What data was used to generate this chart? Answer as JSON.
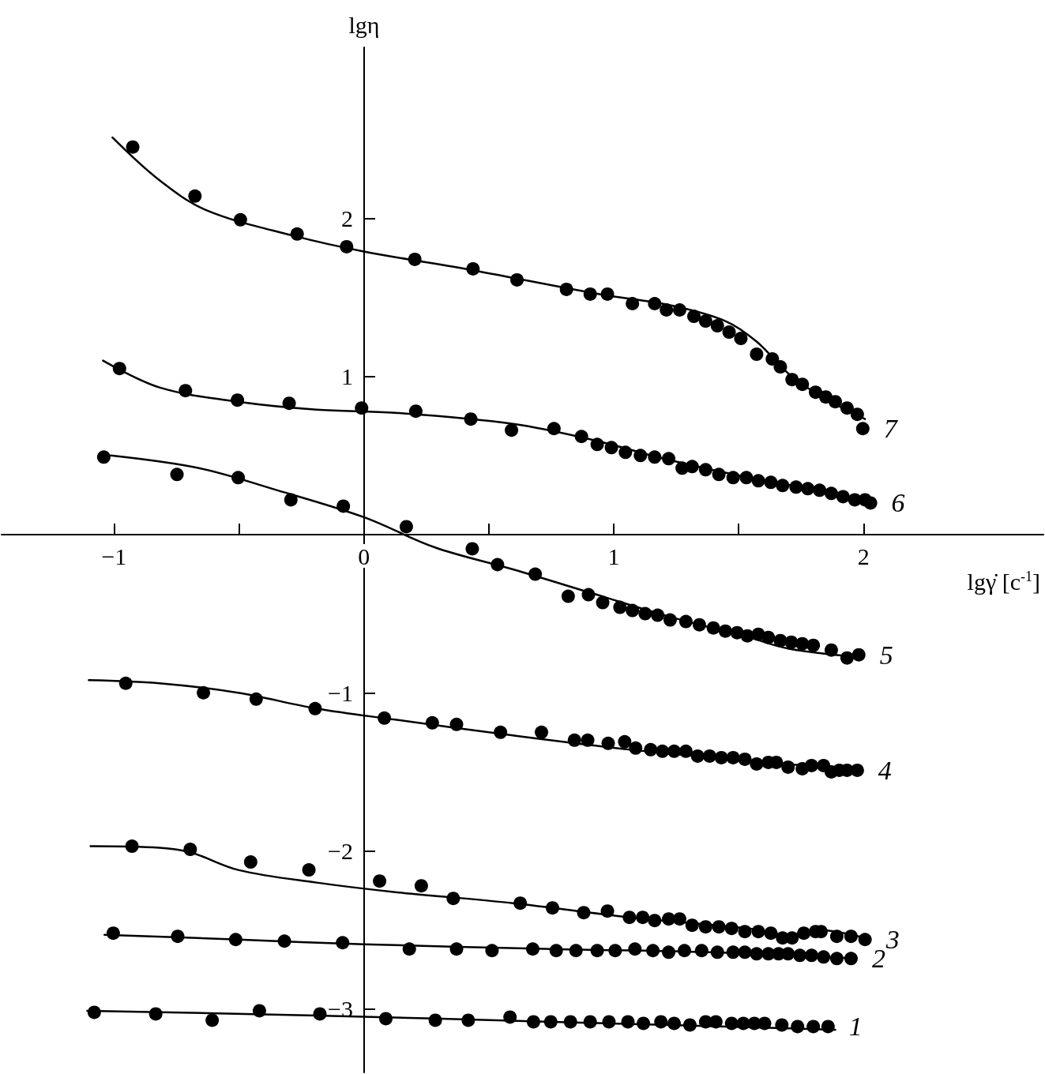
{
  "chart_data": {
    "type": "scatter",
    "xlabel": "lgγ̇ [c$^{-1}$]",
    "ylabel": "lgη",
    "xlim": [
      -1.45,
      2.72
    ],
    "ylim": [
      -3.4,
      3.08
    ],
    "xticks": [
      {
        "value": -1,
        "label": "−1"
      },
      {
        "value": -0.5,
        "label": null
      },
      0,
      {
        "value": 0.5,
        "label": null
      },
      1,
      {
        "value": 1.5,
        "label": null
      },
      2
    ],
    "yticks": [
      {
        "value": -3,
        "label": "−3"
      },
      {
        "value": -2,
        "label": "−2"
      },
      {
        "value": -1,
        "label": "−1"
      },
      1,
      2
    ],
    "grid": false,
    "legend": false,
    "marker": "circle",
    "series": [
      {
        "name": "7",
        "color": "#000000",
        "x": [
          -0.925,
          -0.676,
          -0.494,
          -0.267,
          -0.069,
          0.204,
          0.437,
          0.613,
          0.811,
          0.906,
          0.975,
          1.075,
          1.164,
          1.211,
          1.264,
          1.321,
          1.368,
          1.415,
          1.462,
          1.509,
          1.572,
          1.635,
          1.667,
          1.714,
          1.755,
          1.808,
          1.849,
          1.887,
          1.934,
          1.975,
          1.997
        ],
        "values": [
          2.45,
          2.14,
          1.99,
          1.9,
          1.82,
          1.74,
          1.68,
          1.61,
          1.55,
          1.52,
          1.52,
          1.46,
          1.46,
          1.42,
          1.42,
          1.38,
          1.35,
          1.32,
          1.28,
          1.24,
          1.14,
          1.11,
          1.06,
          0.98,
          0.95,
          0.9,
          0.87,
          0.84,
          0.8,
          0.76,
          0.67
        ]
      },
      {
        "type": "line",
        "marker": "none",
        "color": "#000000",
        "x": [
          -1.006,
          -0.818,
          -0.629,
          -0.283,
          0,
          0.44,
          0.943,
          1.226,
          1.447,
          1.572,
          1.698,
          1.824,
          2.006
        ],
        "values": [
          2.51,
          2.24,
          2.05,
          1.89,
          1.79,
          1.67,
          1.52,
          1.45,
          1.35,
          1.22,
          1.02,
          0.88,
          0.73
        ]
      },
      {
        "name": "6",
        "color": "#000000",
        "x": [
          -0.978,
          -0.714,
          -0.506,
          -0.299,
          -0.009,
          0.208,
          0.428,
          0.591,
          0.761,
          0.871,
          0.934,
          0.991,
          1.047,
          1.107,
          1.164,
          1.22,
          1.274,
          1.314,
          1.368,
          1.421,
          1.478,
          1.531,
          1.579,
          1.629,
          1.676,
          1.73,
          1.777,
          1.824,
          1.871,
          1.918,
          1.965,
          2.006,
          2.028
        ],
        "values": [
          1.05,
          0.91,
          0.85,
          0.83,
          0.8,
          0.78,
          0.73,
          0.66,
          0.67,
          0.62,
          0.57,
          0.55,
          0.52,
          0.5,
          0.49,
          0.48,
          0.42,
          0.43,
          0.41,
          0.38,
          0.36,
          0.36,
          0.34,
          0.33,
          0.31,
          0.3,
          0.29,
          0.28,
          0.26,
          0.24,
          0.22,
          0.22,
          0.2
        ]
      },
      {
        "type": "line",
        "marker": "none",
        "color": "#000000",
        "x": [
          -1.044,
          -0.818,
          -0.503,
          -0.189,
          0.126,
          0.597,
          0.912,
          1.226,
          1.541,
          1.855,
          2.028
        ],
        "values": [
          1.1,
          0.93,
          0.84,
          0.79,
          0.77,
          0.7,
          0.6,
          0.47,
          0.36,
          0.27,
          0.21
        ]
      },
      {
        "name": "5",
        "color": "#000000",
        "x": [
          -1.041,
          -0.748,
          -0.503,
          -0.292,
          -0.082,
          0.17,
          0.434,
          0.535,
          0.686,
          0.818,
          0.899,
          0.956,
          1.025,
          1.075,
          1.126,
          1.176,
          1.226,
          1.289,
          1.343,
          1.399,
          1.447,
          1.494,
          1.535,
          1.579,
          1.619,
          1.667,
          1.711,
          1.755,
          1.799,
          1.871,
          1.934,
          1.981
        ],
        "values": [
          0.49,
          0.38,
          0.36,
          0.22,
          0.18,
          0.05,
          -0.09,
          -0.19,
          -0.25,
          -0.39,
          -0.38,
          -0.43,
          -0.46,
          -0.48,
          -0.5,
          -0.51,
          -0.54,
          -0.55,
          -0.57,
          -0.59,
          -0.61,
          -0.62,
          -0.64,
          -0.63,
          -0.65,
          -0.67,
          -0.68,
          -0.69,
          -0.7,
          -0.73,
          -0.78,
          -0.76
        ]
      },
      {
        "type": "line",
        "marker": "none",
        "color": "#000000",
        "x": [
          -1.013,
          -0.66,
          -0.346,
          0,
          0.283,
          0.597,
          0.912,
          1.226,
          1.541,
          1.698,
          1.95
        ],
        "values": [
          0.5,
          0.42,
          0.28,
          0.11,
          -0.08,
          -0.22,
          -0.37,
          -0.52,
          -0.65,
          -0.72,
          -0.77
        ]
      },
      {
        "name": "4",
        "color": "#000000",
        "x": [
          -0.953,
          -0.642,
          -0.431,
          -0.195,
          0.082,
          0.274,
          0.371,
          0.547,
          0.711,
          0.843,
          0.896,
          0.978,
          1.044,
          1.088,
          1.148,
          1.195,
          1.242,
          1.289,
          1.336,
          1.384,
          1.431,
          1.478,
          1.525,
          1.572,
          1.619,
          1.651,
          1.698,
          1.755,
          1.792,
          1.84,
          1.871,
          1.903,
          1.934,
          1.975
        ],
        "values": [
          -0.94,
          -1.0,
          -1.04,
          -1.1,
          -1.16,
          -1.19,
          -1.2,
          -1.25,
          -1.25,
          -1.3,
          -1.3,
          -1.32,
          -1.31,
          -1.35,
          -1.36,
          -1.37,
          -1.37,
          -1.37,
          -1.4,
          -1.4,
          -1.41,
          -1.41,
          -1.42,
          -1.45,
          -1.44,
          -1.44,
          -1.47,
          -1.48,
          -1.46,
          -1.46,
          -1.5,
          -1.49,
          -1.49,
          -1.49
        ]
      },
      {
        "type": "line",
        "marker": "none",
        "color": "#000000",
        "x": [
          -1.101,
          -0.818,
          -0.503,
          -0.189,
          0.126,
          0.597,
          1.069,
          1.541,
          1.997
        ],
        "values": [
          -0.92,
          -0.94,
          -1.0,
          -1.1,
          -1.17,
          -1.27,
          -1.36,
          -1.43,
          -1.49
        ]
      },
      {
        "name": "3",
        "color": "#000000",
        "x": [
          -0.928,
          -0.695,
          -0.453,
          -0.22,
          0.063,
          0.23,
          0.358,
          0.626,
          0.755,
          0.88,
          0.975,
          1.063,
          1.116,
          1.164,
          1.22,
          1.264,
          1.314,
          1.368,
          1.421,
          1.472,
          1.525,
          1.579,
          1.629,
          1.676,
          1.714,
          1.761,
          1.808,
          1.83,
          1.893,
          1.95,
          2.006
        ],
        "values": [
          -1.97,
          -1.99,
          -2.07,
          -2.12,
          -2.19,
          -2.22,
          -2.3,
          -2.33,
          -2.36,
          -2.39,
          -2.38,
          -2.42,
          -2.42,
          -2.44,
          -2.43,
          -2.43,
          -2.47,
          -2.48,
          -2.48,
          -2.49,
          -2.51,
          -2.51,
          -2.52,
          -2.55,
          -2.55,
          -2.52,
          -2.51,
          -2.51,
          -2.54,
          -2.54,
          -2.56
        ]
      },
      {
        "type": "line",
        "marker": "none",
        "color": "#000000",
        "x": [
          -1.094,
          -0.818,
          -0.692,
          -0.503,
          -0.189,
          0.126,
          0.597,
          1.069,
          1.541,
          1.698,
          1.824,
          2.006
        ],
        "values": [
          -1.97,
          -1.98,
          -2.01,
          -2.12,
          -2.2,
          -2.26,
          -2.33,
          -2.42,
          -2.49,
          -2.53,
          -2.5,
          -2.55
        ]
      },
      {
        "name": "2",
        "color": "#000000",
        "x": [
          -1.003,
          -0.745,
          -0.513,
          -0.318,
          -0.085,
          0.182,
          0.371,
          0.513,
          0.676,
          0.77,
          0.849,
          0.934,
          1.006,
          1.085,
          1.157,
          1.22,
          1.283,
          1.352,
          1.415,
          1.478,
          1.525,
          1.572,
          1.619,
          1.66,
          1.698,
          1.745,
          1.792,
          1.84,
          1.893,
          1.95
        ],
        "values": [
          -2.52,
          -2.54,
          -2.56,
          -2.57,
          -2.58,
          -2.62,
          -2.62,
          -2.63,
          -2.62,
          -2.63,
          -2.63,
          -2.63,
          -2.63,
          -2.62,
          -2.63,
          -2.64,
          -2.63,
          -2.63,
          -2.64,
          -2.64,
          -2.64,
          -2.65,
          -2.65,
          -2.65,
          -2.65,
          -2.66,
          -2.66,
          -2.67,
          -2.68,
          -2.68
        ]
      },
      {
        "type": "line",
        "marker": "none",
        "color": "#000000",
        "x": [
          -1.038,
          -0.503,
          0,
          0.755,
          1.384,
          1.965
        ],
        "values": [
          -2.53,
          -2.56,
          -2.59,
          -2.62,
          -2.64,
          -2.68
        ]
      },
      {
        "name": "1",
        "color": "#000000",
        "x": [
          -1.079,
          -0.833,
          -0.607,
          -0.418,
          -0.176,
          0.088,
          0.286,
          0.418,
          0.585,
          0.679,
          0.748,
          0.827,
          0.906,
          0.981,
          1.057,
          1.119,
          1.189,
          1.242,
          1.305,
          1.368,
          1.409,
          1.472,
          1.519,
          1.563,
          1.604,
          1.673,
          1.736,
          1.799,
          1.858
        ],
        "values": [
          -3.02,
          -3.03,
          -3.07,
          -3.01,
          -3.03,
          -3.06,
          -3.07,
          -3.07,
          -3.05,
          -3.08,
          -3.08,
          -3.08,
          -3.08,
          -3.08,
          -3.08,
          -3.09,
          -3.08,
          -3.09,
          -3.1,
          -3.08,
          -3.08,
          -3.09,
          -3.09,
          -3.09,
          -3.09,
          -3.1,
          -3.11,
          -3.11,
          -3.11
        ]
      },
      {
        "type": "line",
        "marker": "none",
        "color": "#000000",
        "x": [
          -1.107,
          -0.189,
          0.755,
          1.887
        ],
        "values": [
          -3.01,
          -3.04,
          -3.08,
          -3.13
        ]
      }
    ]
  }
}
